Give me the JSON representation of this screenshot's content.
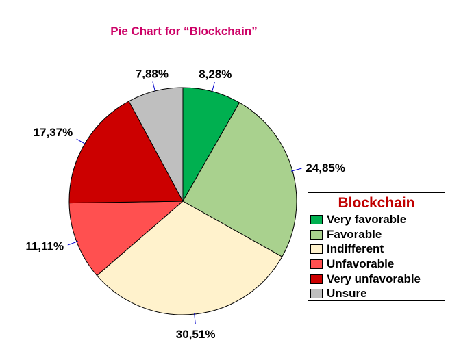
{
  "chart_data": {
    "type": "pie",
    "title": "Pie Chart for “Blockchain”",
    "legend_title": "Blockchain",
    "legend_position": "right",
    "categories": [
      "Very favorable",
      "Favorable",
      "Indifferent",
      "Unfavorable",
      "Very unfavorable",
      "Unsure"
    ],
    "values": [
      8.28,
      24.85,
      30.51,
      11.11,
      17.37,
      7.88
    ],
    "value_labels": [
      "8,28%",
      "24,85%",
      "30,51%",
      "11,11%",
      "17,37%",
      "7,88%"
    ],
    "colors": [
      "#00b050",
      "#a9d18e",
      "#fff2cc",
      "#ff5050",
      "#cc0000",
      "#bfbfbf"
    ],
    "start_angle_deg": 0,
    "direction": "clockwise"
  }
}
